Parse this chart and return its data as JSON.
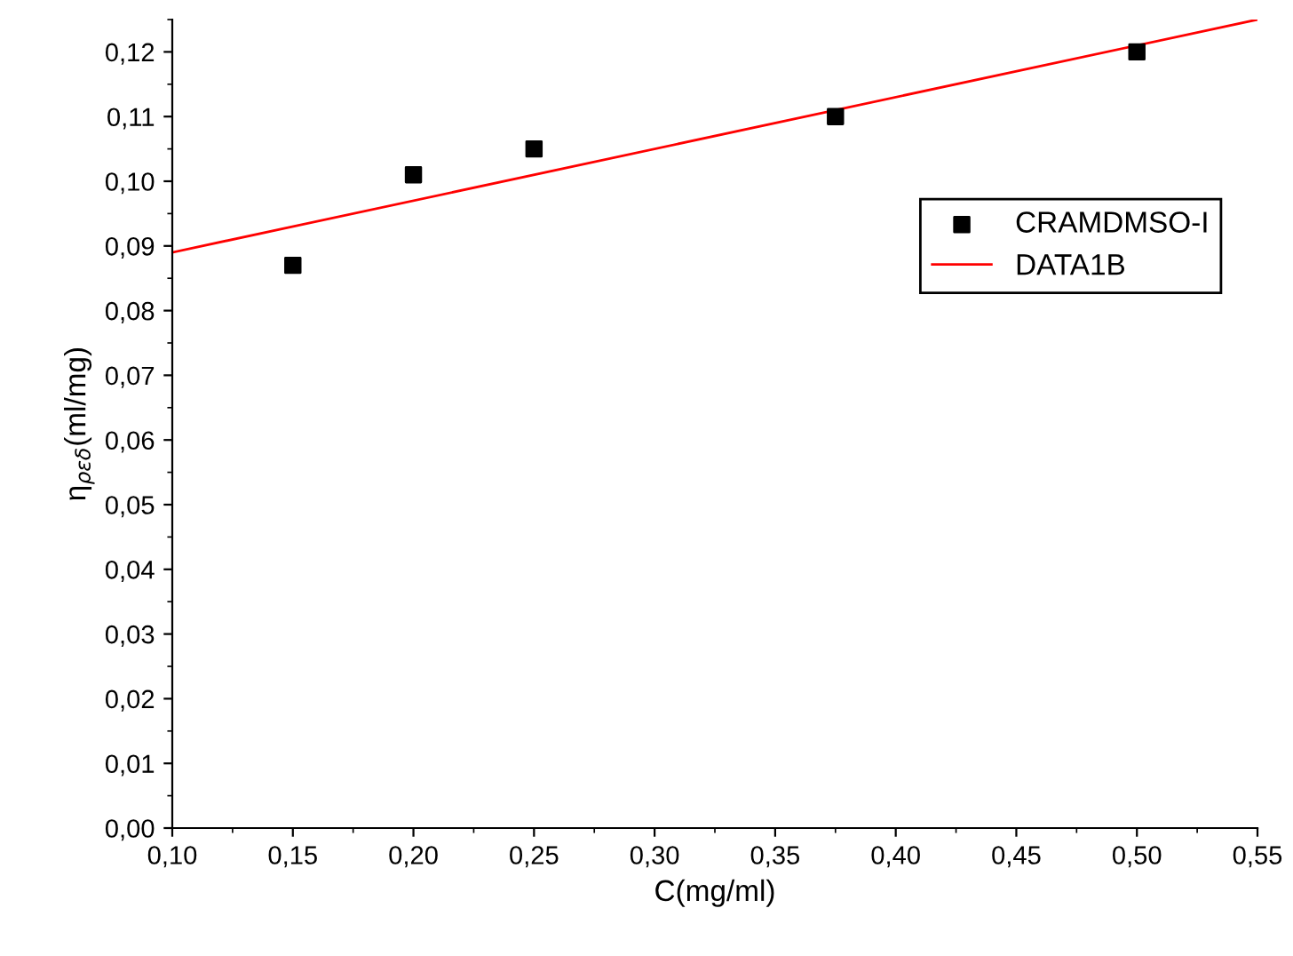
{
  "chart_data": {
    "type": "scatter",
    "xlabel": "C(mg/ml)",
    "ylabel": "η$_{ρεδ}$(ml/mg)",
    "xlim": [
      0.1,
      0.55
    ],
    "ylim": [
      0,
      0.125
    ],
    "xticks": [
      {
        "value": 0.1,
        "label": "0,10"
      },
      {
        "value": 0.15,
        "label": "0,15"
      },
      {
        "value": 0.2,
        "label": "0,20"
      },
      {
        "value": 0.25,
        "label": "0,25"
      },
      {
        "value": 0.3,
        "label": "0,30"
      },
      {
        "value": 0.35,
        "label": "0,35"
      },
      {
        "value": 0.4,
        "label": "0,40"
      },
      {
        "value": 0.45,
        "label": "0,45"
      },
      {
        "value": 0.5,
        "label": "0,50"
      },
      {
        "value": 0.55,
        "label": "0,55"
      }
    ],
    "yticks": [
      {
        "value": 0,
        "label": "0,00"
      },
      {
        "value": 0.01,
        "label": "0,01"
      },
      {
        "value": 0.02,
        "label": "0,02"
      },
      {
        "value": 0.03,
        "label": "0,03"
      },
      {
        "value": 0.04,
        "label": "0,04"
      },
      {
        "value": 0.05,
        "label": "0,05"
      },
      {
        "value": 0.06,
        "label": "0,06"
      },
      {
        "value": 0.07,
        "label": "0,07"
      },
      {
        "value": 0.08,
        "label": "0,08"
      },
      {
        "value": 0.09,
        "label": "0,09"
      },
      {
        "value": 0.1,
        "label": "0,10"
      },
      {
        "value": 0.11,
        "label": "0,11"
      },
      {
        "value": 0.12,
        "label": "0,12"
      }
    ],
    "series": [
      {
        "name": "CRAMDMSO-I",
        "color": "#000000",
        "marker": "square",
        "x": [
          0.15,
          0.2,
          0.25,
          0.375,
          0.5
        ],
        "values": [
          0.087,
          0.101,
          0.105,
          0.11,
          0.12
        ]
      },
      {
        "name": "DATA1B",
        "type": "line",
        "color": "#ff0000",
        "marker": "none",
        "line_style": "solid",
        "x": [
          0.1,
          0.55
        ],
        "values": [
          0.089,
          0.125
        ]
      }
    ],
    "legend": "right",
    "grid": false
  }
}
